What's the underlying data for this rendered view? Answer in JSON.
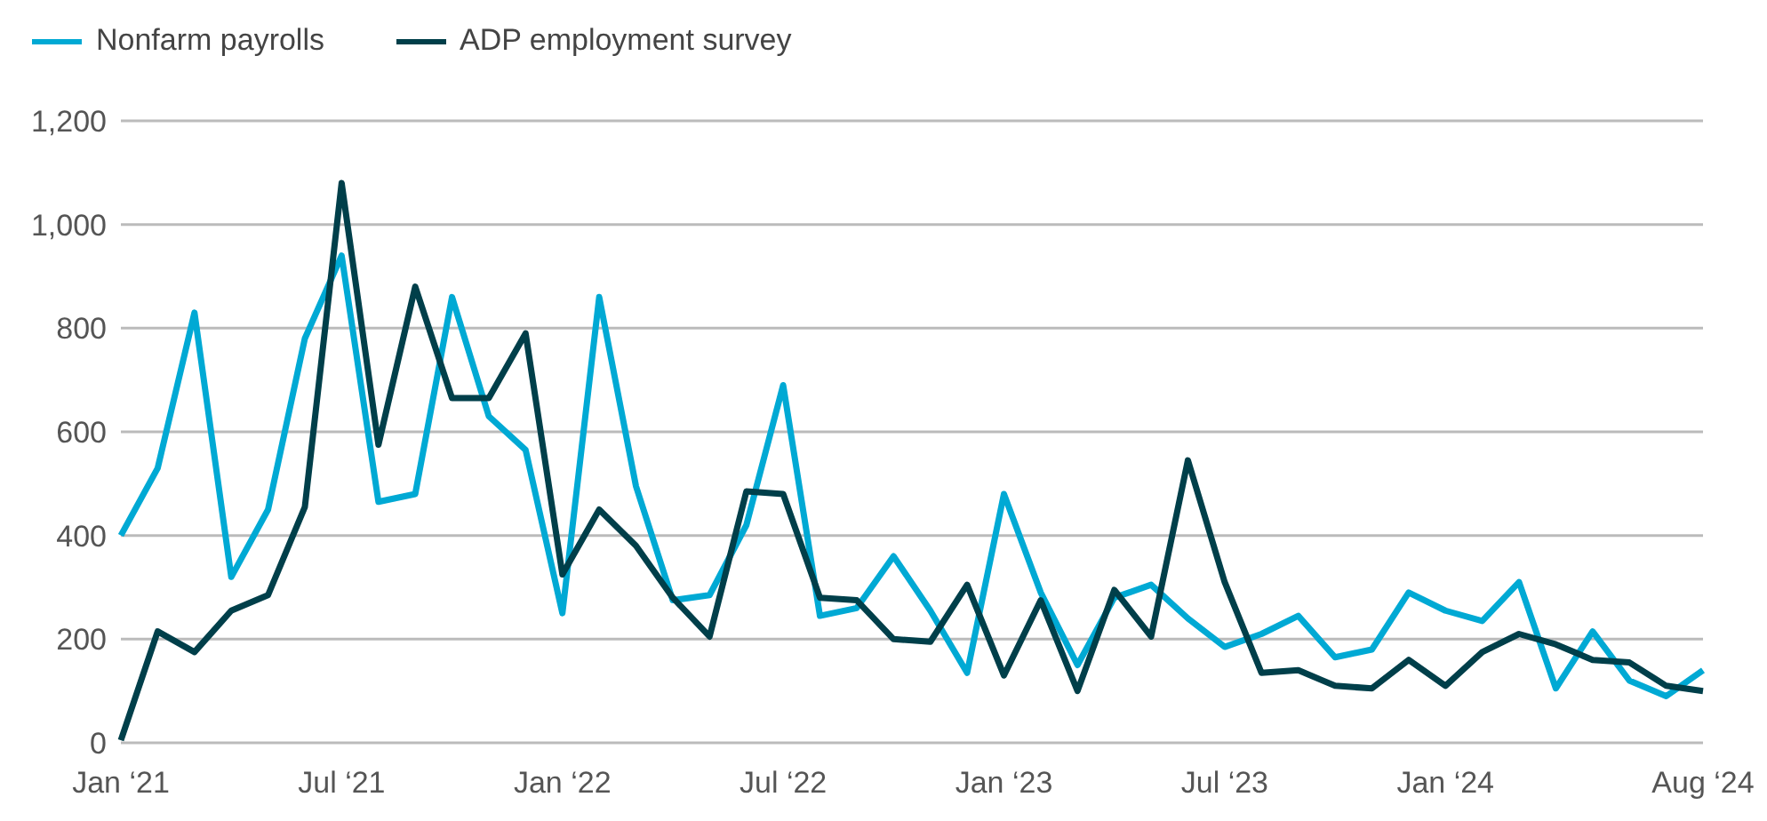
{
  "chart_data": {
    "type": "line",
    "categories": [
      "Jan ‘21",
      null,
      null,
      null,
      null,
      null,
      "Jul ‘21",
      null,
      null,
      null,
      null,
      null,
      "Jan ‘22",
      null,
      null,
      null,
      null,
      null,
      "Jul ‘22",
      null,
      null,
      null,
      null,
      null,
      "Jan ‘23",
      null,
      null,
      null,
      null,
      null,
      "Jul ‘23",
      null,
      null,
      null,
      null,
      null,
      "Jan ‘24",
      null,
      null,
      null,
      null,
      null,
      null,
      "Aug ‘24"
    ],
    "series": [
      {
        "name": "Nonfarm payrolls",
        "color": "#00a9d4",
        "values": [
          400,
          530,
          830,
          320,
          450,
          780,
          940,
          465,
          480,
          860,
          630,
          565,
          250,
          860,
          495,
          275,
          285,
          420,
          690,
          245,
          260,
          360,
          255,
          135,
          480,
          290,
          150,
          280,
          305,
          240,
          185,
          210,
          245,
          165,
          180,
          290,
          255,
          235,
          310,
          105,
          215,
          120,
          90,
          140
        ]
      },
      {
        "name": "ADP employment survey",
        "color": "#003f4a",
        "values": [
          5,
          215,
          175,
          255,
          285,
          455,
          1080,
          575,
          880,
          665,
          665,
          790,
          325,
          450,
          380,
          280,
          205,
          485,
          480,
          280,
          275,
          200,
          195,
          305,
          130,
          275,
          100,
          295,
          205,
          545,
          310,
          135,
          140,
          110,
          105,
          160,
          110,
          175,
          210,
          190,
          160,
          155,
          110,
          100
        ]
      }
    ],
    "ylim": [
      0,
      1200
    ],
    "yticks": [
      0,
      200,
      400,
      600,
      800,
      {
        "value": 1000,
        "label": "1,000"
      },
      {
        "value": 1200,
        "label": "1,200"
      }
    ],
    "grid": "y",
    "legend": "top left",
    "marker": "none",
    "line_style": "solid"
  }
}
